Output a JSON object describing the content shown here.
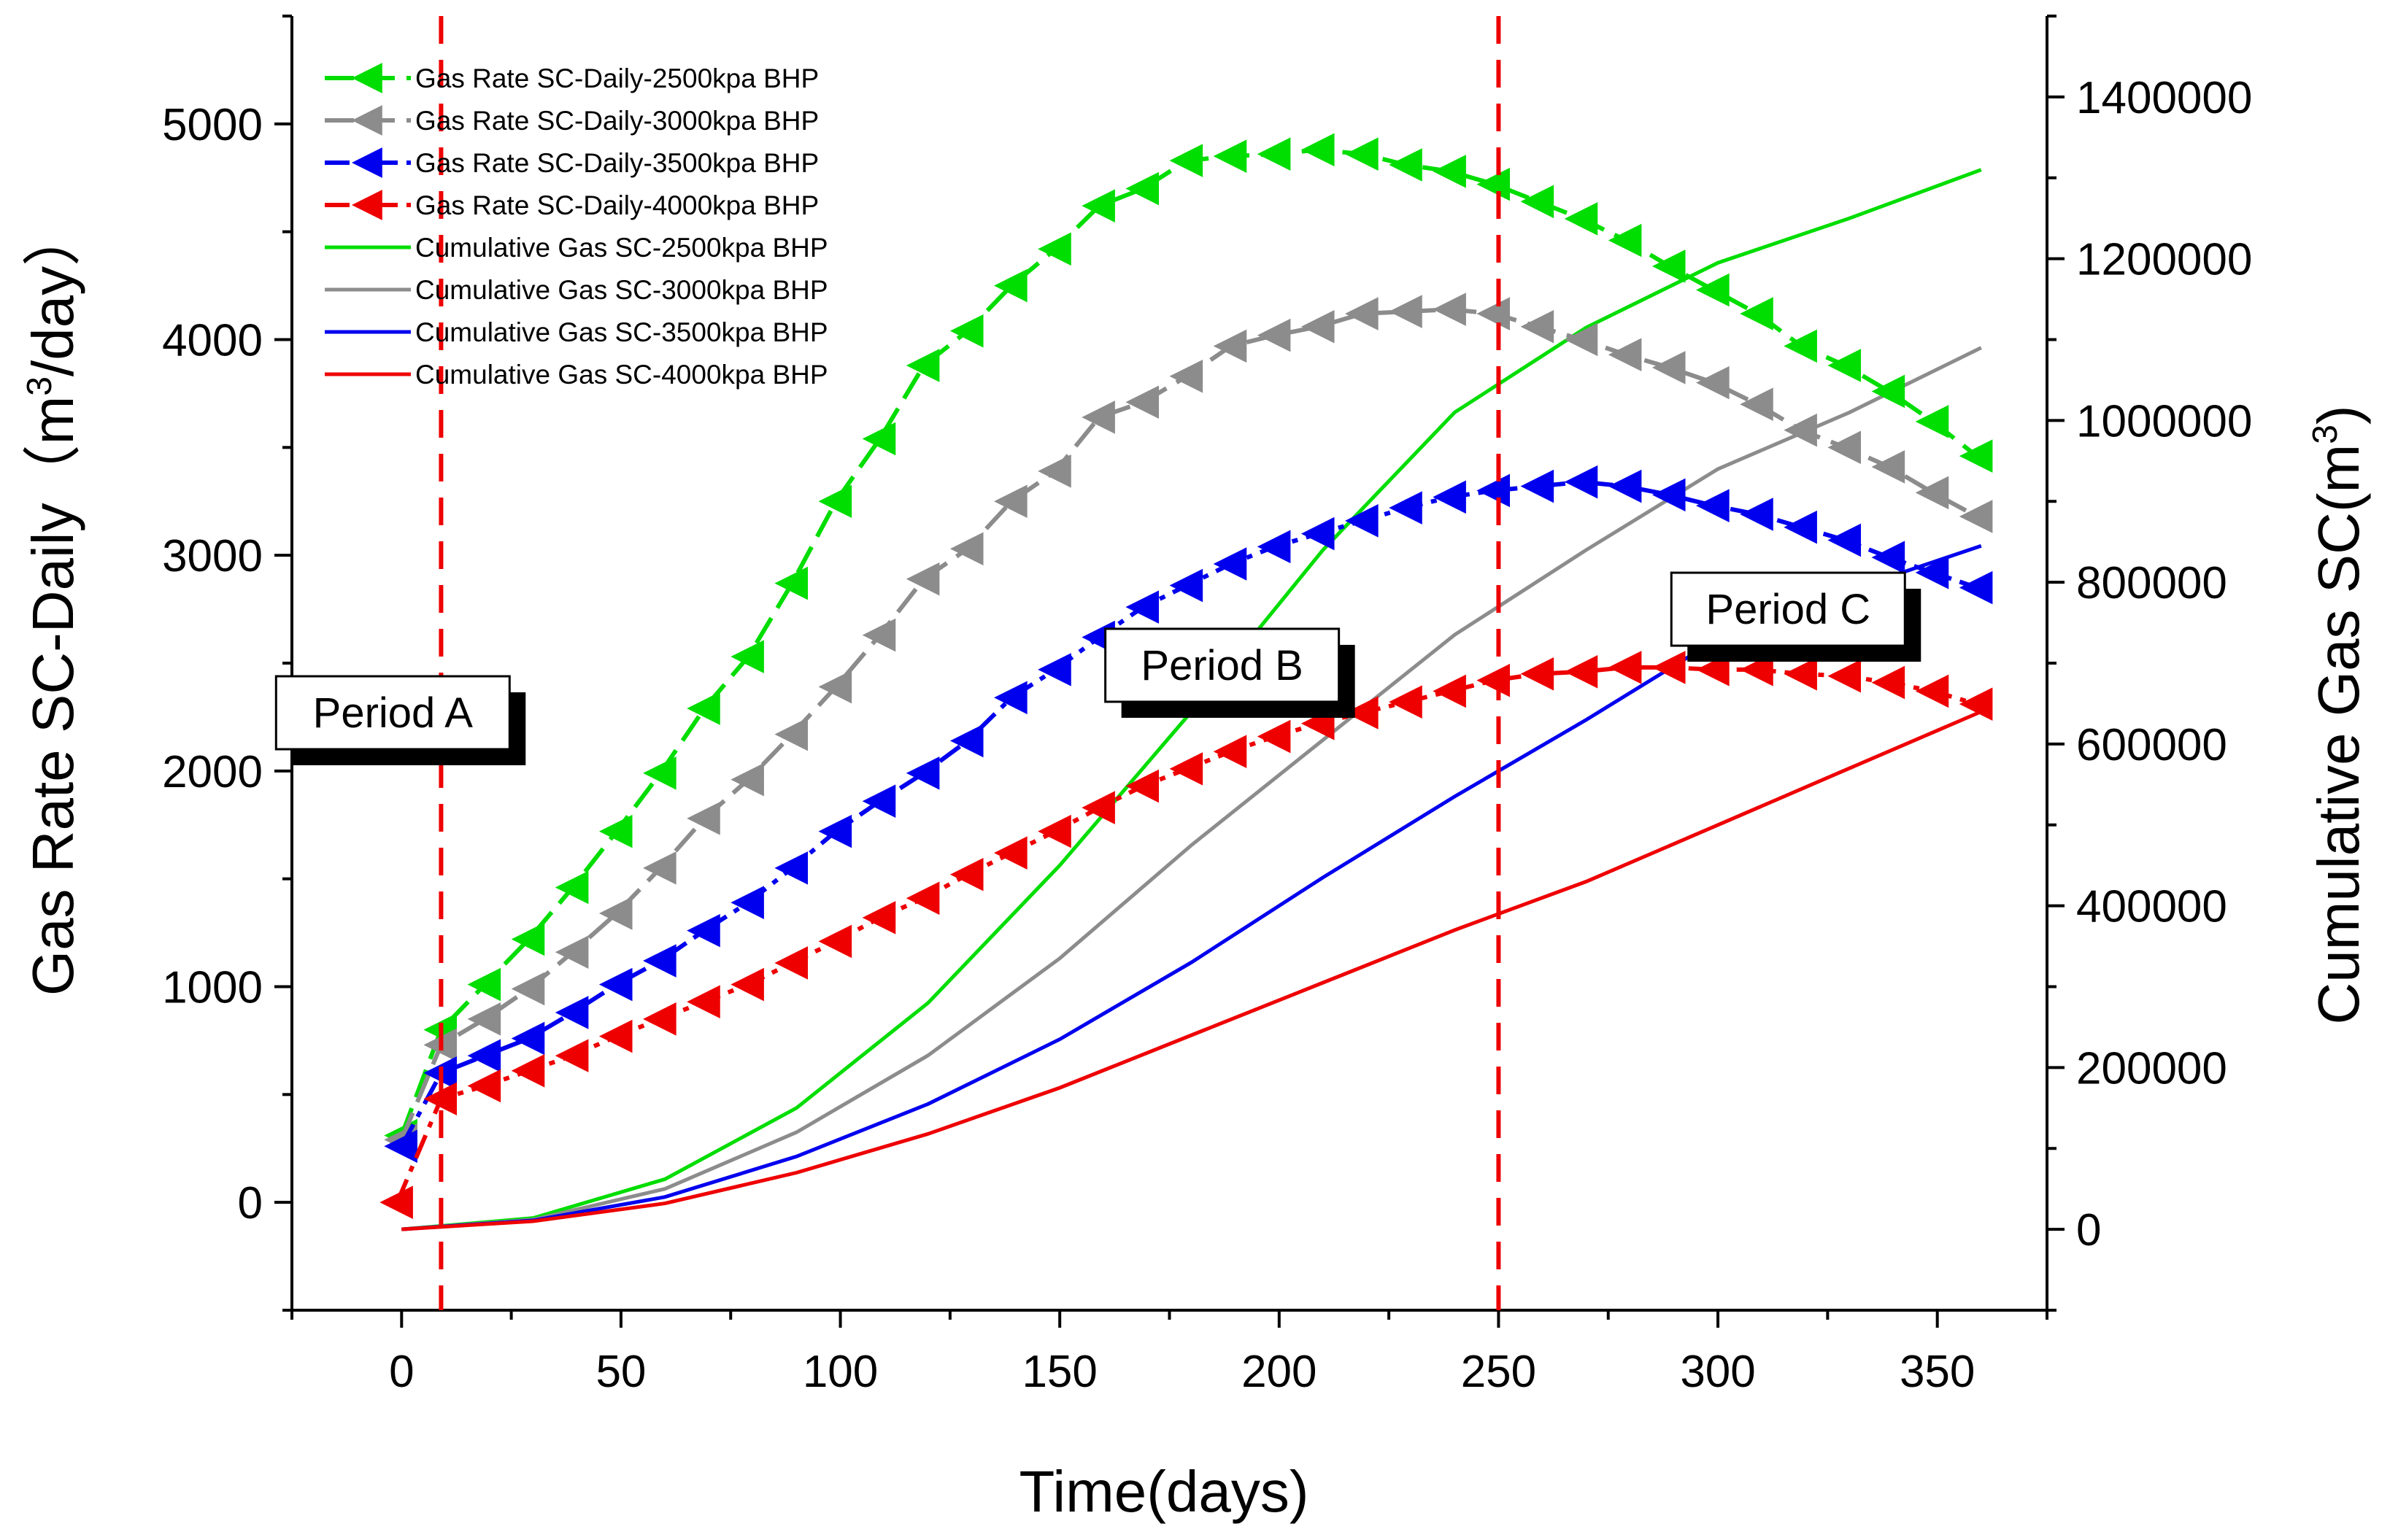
{
  "chart_data": {
    "type": "line",
    "xlabel": "Time(days)",
    "ylabel": "Gas Rate SC-Daily",
    "ylabel_unit_prefix": "（m",
    "ylabel_unit_sup": "3",
    "ylabel_unit_suffix": "/day）",
    "y2label": "Cumulative Gas SC(m",
    "y2label_sup": "3",
    "y2label_suffix": ")",
    "xlim": [
      -25,
      375
    ],
    "ylim": [
      -500,
      5500
    ],
    "y2lim": [
      -100000,
      1500000
    ],
    "xticks": [
      0,
      50,
      100,
      150,
      200,
      250,
      300,
      350
    ],
    "yticks": [
      0,
      1000,
      2000,
      3000,
      4000,
      5000
    ],
    "y2ticks": [
      0,
      200000,
      400000,
      600000,
      800000,
      1000000,
      1200000,
      1400000
    ],
    "legend_position": "top-left",
    "rate_series": [
      {
        "name": "Gas Rate SC-Daily-2500kpa BHP",
        "color": "#00dd00",
        "dash": "long",
        "x": [
          0,
          9,
          19,
          29,
          39,
          49,
          59,
          69,
          79,
          89,
          99,
          109,
          119,
          129,
          139,
          149,
          159,
          169,
          179,
          189,
          199,
          209,
          219,
          229,
          239,
          249,
          259,
          269,
          279,
          289,
          299,
          309,
          319,
          329,
          339,
          349,
          359
        ],
        "values": [
          310,
          800,
          1010,
          1220,
          1460,
          1720,
          1990,
          2290,
          2530,
          2870,
          3250,
          3540,
          3880,
          4040,
          4250,
          4420,
          4620,
          4700,
          4830,
          4850,
          4860,
          4880,
          4860,
          4810,
          4780,
          4720,
          4640,
          4560,
          4460,
          4340,
          4230,
          4120,
          3970,
          3880,
          3760,
          3620,
          3460
        ]
      },
      {
        "name": "Gas Rate SC-Daily-3000kpa BHP",
        "color": "#8c8c8c",
        "dash": "long",
        "x": [
          0,
          9,
          19,
          29,
          39,
          49,
          59,
          69,
          79,
          89,
          99,
          109,
          119,
          129,
          139,
          149,
          159,
          169,
          179,
          189,
          199,
          209,
          219,
          229,
          239,
          249,
          259,
          269,
          279,
          289,
          299,
          309,
          319,
          329,
          339,
          349,
          359
        ],
        "values": [
          290,
          730,
          850,
          990,
          1160,
          1340,
          1550,
          1780,
          1960,
          2170,
          2390,
          2630,
          2890,
          3030,
          3250,
          3390,
          3640,
          3710,
          3830,
          3970,
          4020,
          4060,
          4120,
          4130,
          4140,
          4120,
          4060,
          4000,
          3930,
          3870,
          3800,
          3700,
          3580,
          3500,
          3410,
          3290,
          3180
        ]
      },
      {
        "name": "Gas Rate SC-Daily-3500kpa BHP",
        "color": "#0000ee",
        "dash": "dashdot",
        "x": [
          0,
          9,
          19,
          29,
          39,
          49,
          59,
          69,
          79,
          89,
          99,
          109,
          119,
          129,
          139,
          149,
          159,
          169,
          179,
          189,
          199,
          209,
          219,
          229,
          239,
          249,
          259,
          269,
          279,
          289,
          299,
          309,
          319,
          329,
          339,
          349,
          359
        ],
        "values": [
          260,
          600,
          680,
          760,
          880,
          1010,
          1120,
          1260,
          1390,
          1550,
          1720,
          1860,
          1990,
          2140,
          2340,
          2470,
          2620,
          2760,
          2860,
          2960,
          3040,
          3100,
          3160,
          3220,
          3270,
          3300,
          3320,
          3340,
          3320,
          3280,
          3230,
          3190,
          3130,
          3070,
          2990,
          2920,
          2850
        ]
      },
      {
        "name": "Gas Rate SC-Daily-4000kpa BHP",
        "color": "#ee0000",
        "dash": "dashdot",
        "x": [
          -1,
          9,
          19,
          29,
          39,
          49,
          59,
          69,
          79,
          89,
          99,
          109,
          119,
          129,
          139,
          149,
          159,
          169,
          179,
          189,
          199,
          209,
          219,
          229,
          239,
          249,
          259,
          269,
          279,
          289,
          299,
          309,
          319,
          329,
          339,
          349,
          359
        ],
        "values": [
          0,
          480,
          540,
          610,
          680,
          770,
          850,
          930,
          1010,
          1110,
          1210,
          1320,
          1410,
          1520,
          1620,
          1720,
          1830,
          1930,
          2010,
          2090,
          2160,
          2220,
          2270,
          2320,
          2370,
          2420,
          2450,
          2460,
          2480,
          2480,
          2470,
          2470,
          2450,
          2440,
          2410,
          2370,
          2310
        ]
      }
    ],
    "cumulative_series": [
      {
        "name": "Cumulative Gas SC-2500kpa BHP",
        "color": "#00dd00",
        "x": [
          0,
          30,
          60,
          90,
          120,
          150,
          180,
          210,
          240,
          270,
          300,
          330,
          360
        ],
        "values": [
          0,
          14000,
          62000,
          150000,
          280000,
          450000,
          640000,
          840000,
          1010000,
          1115000,
          1195000,
          1250000,
          1310000
        ]
      },
      {
        "name": "Cumulative Gas SC-3000kpa BHP",
        "color": "#8c8c8c",
        "x": [
          0,
          30,
          60,
          90,
          120,
          150,
          180,
          210,
          240,
          270,
          300,
          330,
          360
        ],
        "values": [
          0,
          12000,
          50000,
          120000,
          215000,
          335000,
          475000,
          605000,
          735000,
          840000,
          940000,
          1010000,
          1090000
        ]
      },
      {
        "name": "Cumulative Gas SC-3500kpa BHP",
        "color": "#0000ee",
        "x": [
          0,
          30,
          60,
          90,
          120,
          150,
          180,
          210,
          240,
          270,
          300,
          330,
          360
        ],
        "values": [
          0,
          11000,
          40000,
          90000,
          155000,
          235000,
          330000,
          435000,
          535000,
          630000,
          730000,
          790000,
          845000
        ]
      },
      {
        "name": "Cumulative Gas SC-4000kpa BHP",
        "color": "#ee0000",
        "x": [
          0,
          30,
          60,
          90,
          120,
          150,
          180,
          210,
          240,
          270,
          300,
          330,
          360
        ],
        "values": [
          0,
          10000,
          32000,
          70000,
          118000,
          175000,
          240000,
          305000,
          370000,
          430000,
          500000,
          570000,
          640000
        ]
      }
    ],
    "period_lines": [
      {
        "x": 9,
        "color": "#ee0000"
      },
      {
        "x": 250,
        "color": "#ee0000"
      }
    ],
    "annotations": [
      {
        "label": "Period A",
        "x": -2,
        "y": 2270
      },
      {
        "label": "Period B",
        "x": 187,
        "y": 2490
      },
      {
        "label": "Period C",
        "x": 316,
        "y": 2750
      }
    ]
  }
}
